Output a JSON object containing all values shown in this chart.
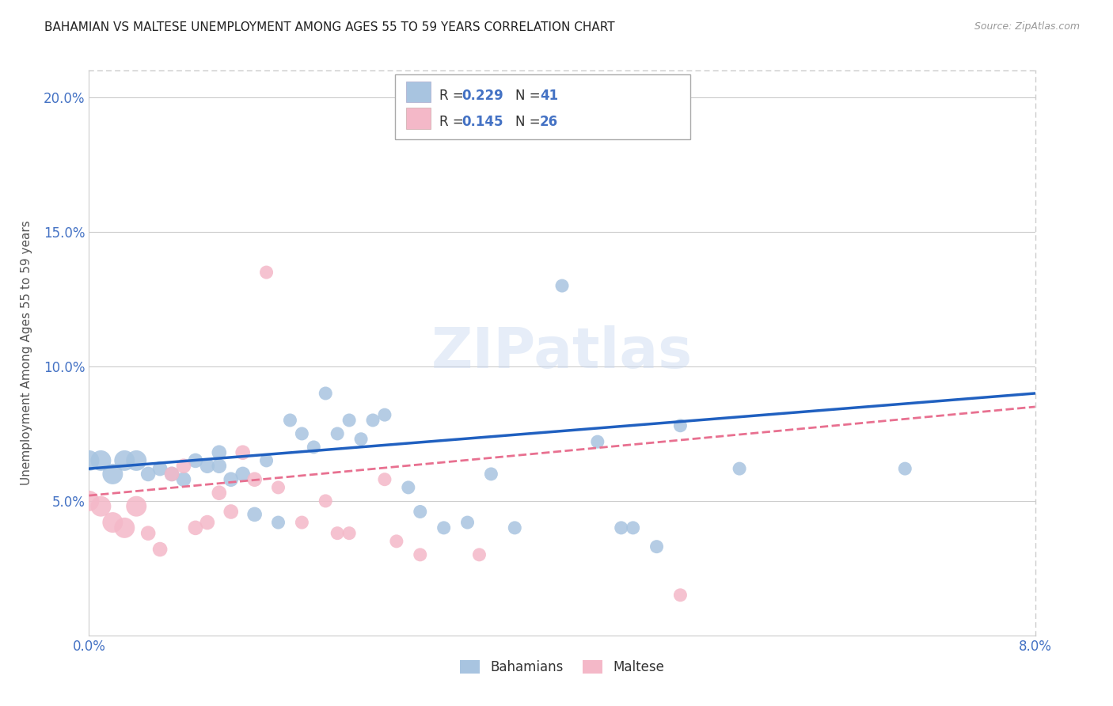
{
  "title": "BAHAMIAN VS MALTESE UNEMPLOYMENT AMONG AGES 55 TO 59 YEARS CORRELATION CHART",
  "source": "Source: ZipAtlas.com",
  "ylabel": "Unemployment Among Ages 55 to 59 years",
  "xlim": [
    0.0,
    0.08
  ],
  "ylim": [
    0.0,
    0.21
  ],
  "xtick_positions": [
    0.0,
    0.01,
    0.02,
    0.03,
    0.04,
    0.05,
    0.06,
    0.07,
    0.08
  ],
  "ytick_positions": [
    0.0,
    0.05,
    0.1,
    0.15,
    0.2
  ],
  "xtick_labels": [
    "0.0%",
    "",
    "",
    "",
    "",
    "",
    "",
    "",
    "8.0%"
  ],
  "ytick_labels": [
    "",
    "5.0%",
    "10.0%",
    "15.0%",
    "20.0%"
  ],
  "bahamian_color": "#a8c4e0",
  "maltese_color": "#f4b8c8",
  "bahamian_line_color": "#2060c0",
  "maltese_line_color": "#e87090",
  "background_color": "#ffffff",
  "grid_color": "#cccccc",
  "bahamian_x": [
    0.0,
    0.001,
    0.002,
    0.003,
    0.004,
    0.005,
    0.006,
    0.007,
    0.008,
    0.009,
    0.01,
    0.011,
    0.011,
    0.012,
    0.013,
    0.014,
    0.015,
    0.016,
    0.017,
    0.018,
    0.019,
    0.02,
    0.021,
    0.022,
    0.023,
    0.024,
    0.025,
    0.027,
    0.028,
    0.03,
    0.032,
    0.034,
    0.036,
    0.04,
    0.043,
    0.045,
    0.046,
    0.048,
    0.05,
    0.055,
    0.069
  ],
  "bahamian_y": [
    0.065,
    0.065,
    0.06,
    0.065,
    0.065,
    0.06,
    0.062,
    0.06,
    0.058,
    0.065,
    0.063,
    0.063,
    0.068,
    0.058,
    0.06,
    0.045,
    0.065,
    0.042,
    0.08,
    0.075,
    0.07,
    0.09,
    0.075,
    0.08,
    0.073,
    0.08,
    0.082,
    0.055,
    0.046,
    0.04,
    0.042,
    0.06,
    0.04,
    0.13,
    0.072,
    0.04,
    0.04,
    0.033,
    0.078,
    0.062,
    0.062
  ],
  "maltese_x": [
    0.0,
    0.001,
    0.002,
    0.003,
    0.004,
    0.005,
    0.006,
    0.007,
    0.008,
    0.009,
    0.01,
    0.011,
    0.012,
    0.013,
    0.014,
    0.015,
    0.016,
    0.018,
    0.02,
    0.021,
    0.022,
    0.025,
    0.026,
    0.028,
    0.033,
    0.05
  ],
  "maltese_y": [
    0.05,
    0.048,
    0.042,
    0.04,
    0.048,
    0.038,
    0.032,
    0.06,
    0.063,
    0.04,
    0.042,
    0.053,
    0.046,
    0.068,
    0.058,
    0.135,
    0.055,
    0.042,
    0.05,
    0.038,
    0.038,
    0.058,
    0.035,
    0.03,
    0.03,
    0.015
  ]
}
